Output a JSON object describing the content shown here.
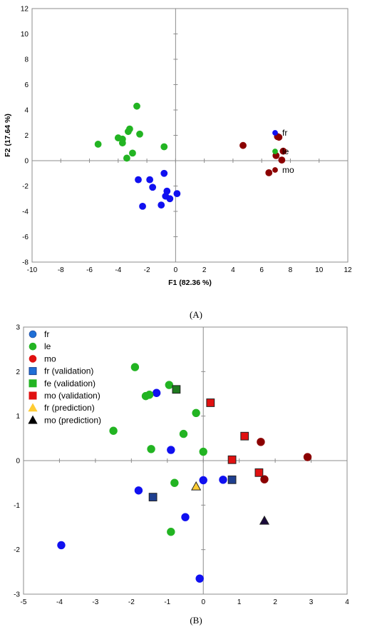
{
  "chart_data": [
    {
      "type": "scatter",
      "panel": "(A)",
      "panel_letter": "A",
      "xlabel": "F1 (82.36 %)",
      "ylabel": "F2 (17.64 %)",
      "xlim": [
        -10,
        12
      ],
      "ylim": [
        -8,
        12
      ],
      "xticks": [
        -10,
        -8,
        -6,
        -4,
        -2,
        0,
        2,
        4,
        6,
        8,
        10,
        12
      ],
      "yticks": [
        -8,
        -6,
        -4,
        -2,
        0,
        2,
        4,
        6,
        8,
        10,
        12
      ],
      "grid": false,
      "legend": "right",
      "series": [
        {
          "name": "fr",
          "color": "#1010f0",
          "marker": "circle",
          "points": [
            [
              -2.6,
              -1.5
            ],
            [
              -0.8,
              -1.0
            ],
            [
              -1.8,
              -1.5
            ],
            [
              -1.6,
              -2.1
            ],
            [
              -0.6,
              -2.4
            ],
            [
              0.1,
              -2.6
            ],
            [
              -0.7,
              -2.8
            ],
            [
              -0.4,
              -3.0
            ],
            [
              -1.0,
              -3.5
            ],
            [
              -2.3,
              -3.6
            ]
          ]
        },
        {
          "name": "le",
          "color": "#22b422",
          "marker": "circle",
          "points": [
            [
              -2.7,
              4.3
            ],
            [
              -3.2,
              2.5
            ],
            [
              -3.3,
              2.3
            ],
            [
              -2.5,
              2.1
            ],
            [
              -4.0,
              1.8
            ],
            [
              -3.7,
              1.7
            ],
            [
              -3.7,
              1.4
            ],
            [
              -5.4,
              1.3
            ],
            [
              -0.8,
              1.1
            ],
            [
              -3.0,
              0.6
            ],
            [
              -3.4,
              0.2
            ]
          ]
        },
        {
          "name": "mo",
          "color": "#8b0000",
          "marker": "circle",
          "points": [
            [
              7.1,
              1.9
            ],
            [
              7.2,
              1.85
            ],
            [
              4.7,
              1.2
            ],
            [
              7.5,
              0.75
            ],
            [
              7.0,
              0.4
            ],
            [
              7.4,
              0.05
            ],
            [
              6.5,
              -0.95
            ]
          ]
        }
      ]
    },
    {
      "type": "scatter",
      "panel": "(B)",
      "panel_letter": "B",
      "xlabel": "",
      "ylabel": "",
      "xlim": [
        -5,
        4
      ],
      "ylim": [
        -3,
        3
      ],
      "xticks": [
        -5,
        -4,
        -3,
        -2,
        -1,
        0,
        1,
        2,
        3,
        4
      ],
      "yticks": [
        -3,
        -2,
        -1,
        0,
        1,
        2,
        3
      ],
      "grid": false,
      "legend": "top-left",
      "series": [
        {
          "name": "fr",
          "color": "#1010f0",
          "marker": "circle",
          "points": [
            [
              -1.3,
              1.52
            ],
            [
              -0.9,
              0.24
            ],
            [
              -1.8,
              -0.67
            ],
            [
              0.0,
              -0.44
            ],
            [
              0.55,
              -0.43
            ],
            [
              -0.5,
              -1.27
            ],
            [
              -3.95,
              -1.9
            ],
            [
              -0.1,
              -2.65
            ]
          ]
        },
        {
          "name": "le",
          "color": "#22b422",
          "marker": "circle",
          "points": [
            [
              -1.9,
              2.1
            ],
            [
              -0.95,
              1.7
            ],
            [
              -1.6,
              1.45
            ],
            [
              -1.5,
              1.48
            ],
            [
              -0.2,
              1.07
            ],
            [
              -2.5,
              0.67
            ],
            [
              -0.55,
              0.6
            ],
            [
              -1.45,
              0.26
            ],
            [
              0.0,
              0.2
            ],
            [
              -0.8,
              -0.5
            ],
            [
              -0.9,
              -1.6
            ]
          ]
        },
        {
          "name": "mo",
          "color": "#8b0000",
          "marker": "circle",
          "points": [
            [
              1.6,
              0.42
            ],
            [
              2.9,
              0.08
            ],
            [
              1.7,
              -0.42
            ]
          ]
        },
        {
          "name": "fr (validation)",
          "color": "#1f3f8f",
          "marker": "square",
          "points": [
            [
              -1.4,
              -0.82
            ],
            [
              0.8,
              -0.43
            ]
          ]
        },
        {
          "name": "fe (validation)",
          "color": "#1e7a1e",
          "marker": "square",
          "points": [
            [
              -0.75,
              1.6
            ]
          ]
        },
        {
          "name": "mo (validation)",
          "color": "#e01010",
          "marker": "square",
          "points": [
            [
              0.2,
              1.3
            ],
            [
              1.15,
              0.55
            ],
            [
              0.8,
              0.02
            ],
            [
              1.55,
              -0.27
            ]
          ]
        },
        {
          "name": "fr (prediction)",
          "color": "#ffcc33",
          "marker": "triangle",
          "points": [
            [
              -0.2,
              -0.58
            ]
          ]
        },
        {
          "name": "mo (prediction)",
          "color": "#1a0a3a",
          "marker": "triangle",
          "points": [
            [
              1.7,
              -1.35
            ]
          ]
        }
      ],
      "legend_style": [
        {
          "fill": "#1f6fd6",
          "stroke": "#1a3f8f"
        },
        {
          "fill": "#22b422",
          "stroke": "#22b422"
        },
        {
          "fill": "#e01010",
          "stroke": "#e01010"
        },
        {
          "fill": "#1f6fd6",
          "stroke": "#1a3f8f"
        },
        {
          "fill": "#22b422",
          "stroke": "#22b422"
        },
        {
          "fill": "#e01010",
          "stroke": "#e01010"
        },
        {
          "fill": "#ffcc33",
          "stroke": "#ffcc33"
        },
        {
          "fill": "#000000",
          "stroke": "#000000"
        }
      ]
    }
  ]
}
